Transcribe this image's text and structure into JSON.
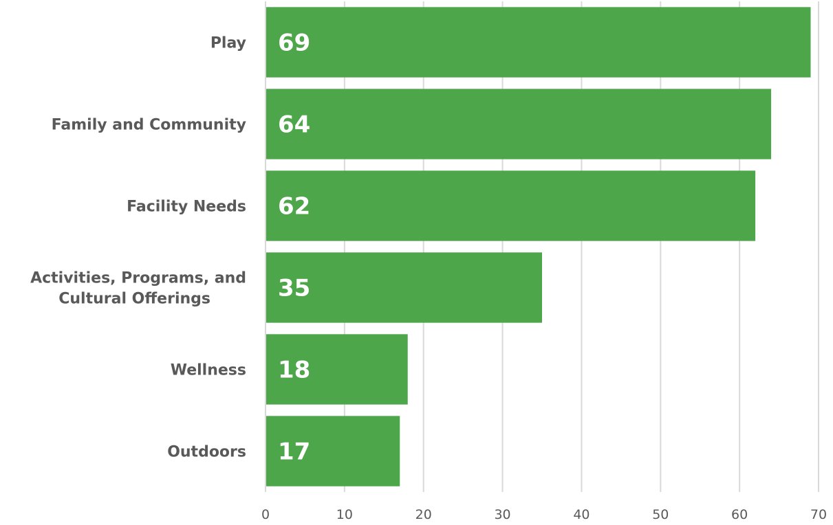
{
  "chart_data": {
    "type": "bar",
    "orientation": "horizontal",
    "title": "",
    "xlabel": "",
    "ylabel": "",
    "categories": [
      "Play",
      "Family and Community",
      "Facility Needs",
      "Activities, Programs, and Cultural Offerings",
      "Wellness",
      "Outdoors"
    ],
    "category_label_lines": [
      [
        "Play"
      ],
      [
        "Family and Community"
      ],
      [
        "Facility Needs"
      ],
      [
        "Activities, Programs, and",
        "Cultural Offerings"
      ],
      [
        "Wellness"
      ],
      [
        "Outdoors"
      ]
    ],
    "values": [
      69,
      64,
      62,
      35,
      18,
      17
    ],
    "data_labels": [
      "69",
      "64",
      "62",
      "35",
      "18",
      "17"
    ],
    "xlim": [
      0,
      70
    ],
    "xticks": [
      0,
      10,
      20,
      30,
      40,
      50,
      60,
      70
    ],
    "xtick_labels": [
      "0",
      "10",
      "20",
      "30",
      "40",
      "50",
      "60",
      "70"
    ],
    "grid": "vertical",
    "legend": "none",
    "bar_color": "#4ea64a"
  }
}
